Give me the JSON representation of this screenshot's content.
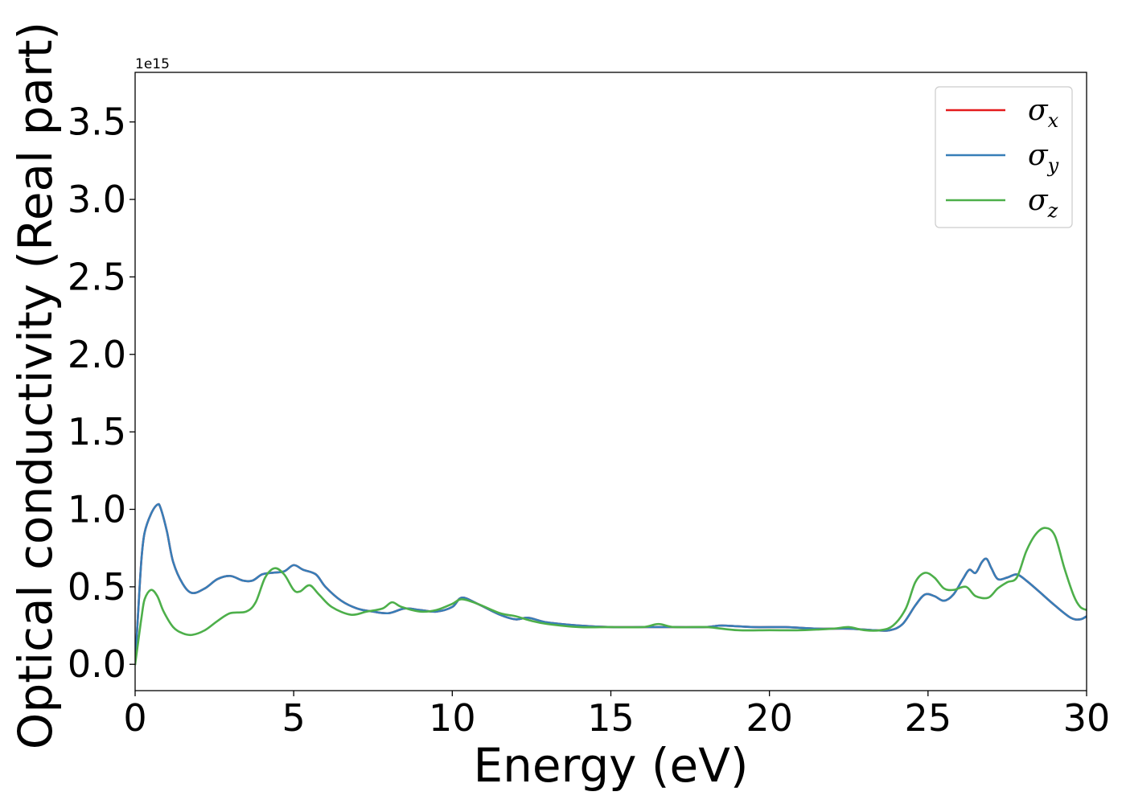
{
  "chart_data": {
    "type": "line",
    "title": "",
    "xlabel": "Energy (eV)",
    "ylabel": "Optical conductivity (Real part)",
    "y_offset_label": "1e15",
    "y_scale": 1000000000000000.0,
    "xlim": [
      0,
      30
    ],
    "ylim": [
      -0.17,
      3.82
    ],
    "xticks": [
      0,
      5,
      10,
      15,
      20,
      25,
      30
    ],
    "xtick_labels": [
      "0",
      "5",
      "10",
      "15",
      "20",
      "25",
      "30"
    ],
    "yticks": [
      0.0,
      0.5,
      1.0,
      1.5,
      2.0,
      2.5,
      3.0,
      3.5
    ],
    "ytick_labels": [
      "0.0",
      "0.5",
      "1.0",
      "1.5",
      "2.0",
      "2.5",
      "3.0",
      "3.5"
    ],
    "grid": false,
    "legend_position": "top-right",
    "series": [
      {
        "name": "σx",
        "name_base": "σ",
        "name_sub": "x",
        "color": "#e41a1c",
        "x": [
          0,
          0.1,
          0.2,
          0.3,
          0.5,
          0.7,
          0.8,
          1.0,
          1.2,
          1.5,
          1.8,
          2.2,
          2.6,
          3.0,
          3.4,
          3.7,
          4.0,
          4.3,
          4.7,
          5.0,
          5.3,
          5.7,
          6.0,
          6.5,
          7.0,
          7.5,
          8.0,
          8.5,
          9.0,
          9.5,
          10.0,
          10.3,
          10.8,
          11.5,
          12.0,
          12.4,
          13.0,
          14.0,
          15.0,
          16.0,
          17.0,
          18.0,
          18.5,
          19.5,
          20.5,
          21.5,
          22.5,
          23.3,
          23.8,
          24.2,
          24.6,
          24.9,
          25.2,
          25.5,
          25.8,
          26.1,
          26.3,
          26.5,
          26.7,
          26.85,
          27.0,
          27.2,
          27.5,
          27.8,
          28.1,
          28.5,
          29.0,
          29.5,
          29.8,
          30.0
        ],
        "y": [
          0.0,
          0.35,
          0.68,
          0.85,
          0.97,
          1.03,
          1.01,
          0.86,
          0.66,
          0.52,
          0.46,
          0.49,
          0.55,
          0.57,
          0.54,
          0.54,
          0.58,
          0.59,
          0.6,
          0.64,
          0.61,
          0.58,
          0.5,
          0.41,
          0.36,
          0.34,
          0.33,
          0.36,
          0.35,
          0.34,
          0.37,
          0.43,
          0.39,
          0.32,
          0.29,
          0.3,
          0.27,
          0.25,
          0.24,
          0.24,
          0.24,
          0.24,
          0.25,
          0.24,
          0.24,
          0.23,
          0.23,
          0.22,
          0.22,
          0.26,
          0.38,
          0.45,
          0.44,
          0.41,
          0.45,
          0.55,
          0.61,
          0.59,
          0.66,
          0.68,
          0.62,
          0.55,
          0.56,
          0.58,
          0.54,
          0.47,
          0.38,
          0.3,
          0.29,
          0.31
        ]
      },
      {
        "name": "σy",
        "name_base": "σ",
        "name_sub": "y",
        "color": "#377eb8",
        "x": [
          0,
          0.1,
          0.2,
          0.3,
          0.5,
          0.7,
          0.8,
          1.0,
          1.2,
          1.5,
          1.8,
          2.2,
          2.6,
          3.0,
          3.4,
          3.7,
          4.0,
          4.3,
          4.7,
          5.0,
          5.3,
          5.7,
          6.0,
          6.5,
          7.0,
          7.5,
          8.0,
          8.5,
          9.0,
          9.5,
          10.0,
          10.3,
          10.8,
          11.5,
          12.0,
          12.4,
          13.0,
          14.0,
          15.0,
          16.0,
          17.0,
          18.0,
          18.5,
          19.5,
          20.5,
          21.5,
          22.5,
          23.3,
          23.8,
          24.2,
          24.6,
          24.9,
          25.2,
          25.5,
          25.8,
          26.1,
          26.3,
          26.5,
          26.7,
          26.85,
          27.0,
          27.2,
          27.5,
          27.8,
          28.1,
          28.5,
          29.0,
          29.5,
          29.8,
          30.0
        ],
        "y": [
          0.0,
          0.35,
          0.68,
          0.85,
          0.97,
          1.03,
          1.01,
          0.86,
          0.66,
          0.52,
          0.46,
          0.49,
          0.55,
          0.57,
          0.54,
          0.54,
          0.58,
          0.59,
          0.6,
          0.64,
          0.61,
          0.58,
          0.5,
          0.41,
          0.36,
          0.34,
          0.33,
          0.36,
          0.35,
          0.34,
          0.37,
          0.43,
          0.39,
          0.32,
          0.29,
          0.3,
          0.27,
          0.25,
          0.24,
          0.24,
          0.24,
          0.24,
          0.25,
          0.24,
          0.24,
          0.23,
          0.23,
          0.22,
          0.22,
          0.26,
          0.38,
          0.45,
          0.44,
          0.41,
          0.45,
          0.55,
          0.61,
          0.59,
          0.66,
          0.68,
          0.62,
          0.55,
          0.56,
          0.58,
          0.54,
          0.47,
          0.38,
          0.3,
          0.29,
          0.31
        ]
      },
      {
        "name": "σz",
        "name_base": "σ",
        "name_sub": "z",
        "color": "#4daf4a",
        "x": [
          0,
          0.1,
          0.2,
          0.3,
          0.5,
          0.7,
          0.9,
          1.2,
          1.5,
          1.8,
          2.2,
          2.6,
          3.0,
          3.5,
          3.8,
          4.1,
          4.4,
          4.7,
          5.0,
          5.2,
          5.5,
          5.8,
          6.2,
          6.8,
          7.3,
          7.8,
          8.1,
          8.4,
          9.0,
          9.5,
          10.0,
          10.3,
          10.8,
          11.5,
          12.0,
          12.5,
          13.0,
          14.0,
          15.0,
          16.0,
          16.5,
          17.0,
          18.0,
          19.0,
          20.0,
          21.0,
          22.0,
          22.5,
          23.0,
          23.5,
          23.9,
          24.3,
          24.6,
          24.9,
          25.2,
          25.5,
          25.8,
          26.2,
          26.5,
          26.9,
          27.2,
          27.5,
          27.8,
          28.1,
          28.4,
          28.7,
          29.0,
          29.3,
          29.6,
          29.8,
          30.0
        ],
        "y": [
          0.0,
          0.15,
          0.3,
          0.42,
          0.48,
          0.44,
          0.34,
          0.24,
          0.2,
          0.19,
          0.22,
          0.28,
          0.33,
          0.34,
          0.4,
          0.56,
          0.62,
          0.58,
          0.48,
          0.47,
          0.51,
          0.45,
          0.37,
          0.32,
          0.34,
          0.36,
          0.4,
          0.37,
          0.34,
          0.35,
          0.39,
          0.42,
          0.39,
          0.33,
          0.31,
          0.28,
          0.26,
          0.24,
          0.24,
          0.24,
          0.26,
          0.24,
          0.24,
          0.22,
          0.22,
          0.22,
          0.23,
          0.24,
          0.22,
          0.22,
          0.25,
          0.36,
          0.53,
          0.59,
          0.56,
          0.49,
          0.48,
          0.5,
          0.44,
          0.43,
          0.49,
          0.53,
          0.56,
          0.73,
          0.84,
          0.88,
          0.83,
          0.62,
          0.44,
          0.37,
          0.35
        ]
      }
    ]
  }
}
